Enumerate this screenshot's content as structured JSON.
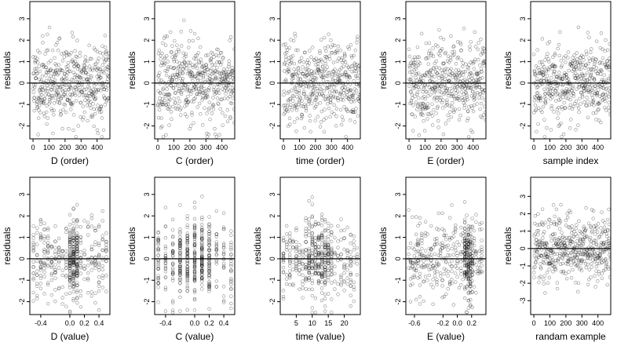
{
  "chart_data": [
    {
      "type": "scatter",
      "title": "",
      "xlabel": "D (order)",
      "ylabel": "residuals",
      "xlim": [
        -20,
        480
      ],
      "ylim": [
        -2.6,
        3.8
      ],
      "xticks": [
        0,
        100,
        200,
        300,
        400
      ],
      "yticks": [
        -2,
        -1,
        0,
        1,
        2,
        3
      ],
      "reference_line_y": 0,
      "gen": {
        "kind": "order",
        "n": 480,
        "seed": 11
      }
    },
    {
      "type": "scatter",
      "title": "",
      "xlabel": "C (order)",
      "ylabel": "residuals",
      "xlim": [
        -20,
        480
      ],
      "ylim": [
        -2.6,
        3.8
      ],
      "xticks": [
        0,
        100,
        200,
        300,
        400
      ],
      "yticks": [
        -2,
        -1,
        0,
        1,
        2,
        3
      ],
      "reference_line_y": 0,
      "gen": {
        "kind": "order",
        "n": 480,
        "seed": 23
      }
    },
    {
      "type": "scatter",
      "title": "",
      "xlabel": "time (order)",
      "ylabel": "residuals",
      "xlim": [
        -20,
        480
      ],
      "ylim": [
        -2.6,
        3.8
      ],
      "xticks": [
        0,
        100,
        200,
        300,
        400
      ],
      "yticks": [
        -2,
        -1,
        0,
        1,
        2,
        3
      ],
      "reference_line_y": 0,
      "gen": {
        "kind": "order",
        "n": 480,
        "seed": 37
      }
    },
    {
      "type": "scatter",
      "title": "",
      "xlabel": "E (order)",
      "ylabel": "residuals",
      "xlim": [
        -20,
        480
      ],
      "ylim": [
        -2.6,
        3.8
      ],
      "xticks": [
        0,
        100,
        200,
        300,
        400
      ],
      "yticks": [
        -2,
        -1,
        0,
        1,
        2,
        3
      ],
      "reference_line_y": 0,
      "gen": {
        "kind": "order",
        "n": 480,
        "seed": 41
      }
    },
    {
      "type": "scatter",
      "title": "",
      "xlabel": "sample index",
      "ylabel": "residuals",
      "xlim": [
        -20,
        480
      ],
      "ylim": [
        -2.6,
        3.8
      ],
      "xticks": [
        0,
        100,
        200,
        300,
        400
      ],
      "yticks": [
        -2,
        -1,
        0,
        1,
        2,
        3
      ],
      "reference_line_y": 0,
      "gen": {
        "kind": "order",
        "n": 480,
        "seed": 53
      }
    },
    {
      "type": "scatter",
      "title": "",
      "xlabel": "D (value)",
      "ylabel": "residuals",
      "xlim": [
        -0.55,
        0.55
      ],
      "ylim": [
        -2.6,
        3.8
      ],
      "xticks": [
        -0.4,
        0.0,
        0.2,
        0.4
      ],
      "xticklabels": [
        "-0.4",
        "0.0",
        "0.2",
        "0.4"
      ],
      "yticks": [
        -2,
        -1,
        0,
        1,
        2,
        3
      ],
      "reference_line_y": 0,
      "gen": {
        "kind": "value",
        "n": 480,
        "seed": 61,
        "xmin": -0.5,
        "xmax": 0.5,
        "nlevels": 21,
        "focus": 0.05,
        "focusWidth": 0.12
      }
    },
    {
      "type": "scatter",
      "title": "",
      "xlabel": "C (value)",
      "ylabel": "residuals",
      "xlim": [
        -0.55,
        0.55
      ],
      "ylim": [
        -2.6,
        3.8
      ],
      "xticks": [
        -0.4,
        0.0,
        0.2,
        0.4
      ],
      "xticklabels": [
        "-0.4",
        "0.0",
        "0.2",
        "0.4"
      ],
      "yticks": [
        -2,
        -1,
        0,
        1,
        2,
        3
      ],
      "reference_line_y": 0,
      "gen": {
        "kind": "value",
        "n": 480,
        "seed": 73,
        "xmin": -0.5,
        "xmax": 0.5,
        "nlevels": 11,
        "focus": 0.0,
        "focusWidth": 0.5
      }
    },
    {
      "type": "scatter",
      "title": "",
      "xlabel": "time (value)",
      "ylabel": "residuals",
      "xlim": [
        0,
        25
      ],
      "ylim": [
        -2.6,
        3.8
      ],
      "xticks": [
        5,
        10,
        15,
        20
      ],
      "xticklabels": [
        "5",
        "10",
        "15",
        "20"
      ],
      "yticks": [
        -2,
        -1,
        0,
        1,
        2,
        3
      ],
      "reference_line_y": 0,
      "gen": {
        "kind": "value",
        "n": 480,
        "seed": 89,
        "xmin": 1,
        "xmax": 24,
        "nlevels": 24,
        "focus": 12,
        "focusWidth": 8
      }
    },
    {
      "type": "scatter",
      "title": "",
      "xlabel": "E (value)",
      "ylabel": "residuals",
      "xlim": [
        -0.72,
        0.4
      ],
      "ylim": [
        -2.6,
        3.8
      ],
      "xticks": [
        -0.6,
        -0.2,
        0.0,
        0.2
      ],
      "xticklabels": [
        "-0.6",
        "-0.2",
        "0.0",
        "0.2"
      ],
      "yticks": [
        -2,
        -1,
        0,
        1,
        2,
        3
      ],
      "reference_line_y": 0,
      "gen": {
        "kind": "value",
        "n": 480,
        "seed": 97,
        "xmin": -0.68,
        "xmax": 0.34,
        "nlevels": 40,
        "focus": 0.15,
        "focusWidth": 0.12
      }
    },
    {
      "type": "scatter",
      "title": "",
      "xlabel": "randam example",
      "ylabel": "residuals",
      "xlim": [
        -20,
        480
      ],
      "ylim": [
        -3.8,
        4.1
      ],
      "xticks": [
        0,
        100,
        200,
        300,
        400
      ],
      "yticks": [
        -3,
        -2,
        -1,
        0,
        1,
        2,
        3
      ],
      "reference_line_y": 0,
      "gen": {
        "kind": "order",
        "n": 480,
        "seed": 103
      }
    }
  ]
}
